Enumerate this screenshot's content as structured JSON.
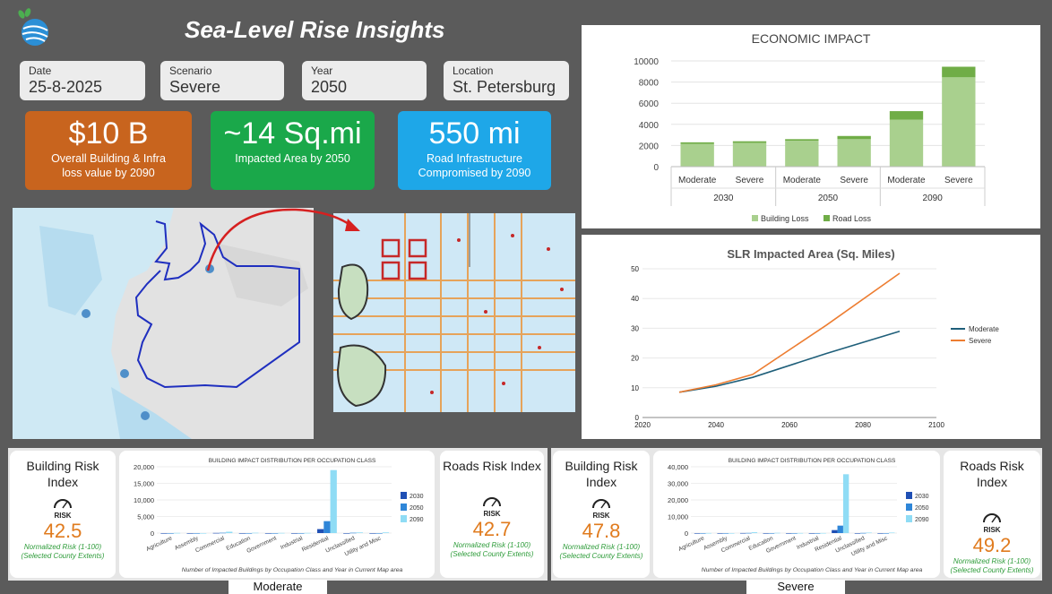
{
  "header": {
    "title": "Sea-Level Rise Insights",
    "logo": "globe-logo"
  },
  "filters": [
    {
      "label": "Date",
      "value": "25-8-2025"
    },
    {
      "label": "Scenario",
      "value": "Severe"
    },
    {
      "label": "Year",
      "value": "2050"
    },
    {
      "label": "Location",
      "value": "St. Petersburg"
    }
  ],
  "kpis": [
    {
      "value": "$10 B",
      "line1": "Overall Building & Infra",
      "line2": "loss value by 2090",
      "color": "#c8641e"
    },
    {
      "value": "~14 Sq.mi",
      "line1": "Impacted Area by 2050",
      "line2": "",
      "color": "#1aa84a"
    },
    {
      "value": "550 mi",
      "line1": "Road Infrastructure",
      "line2": "Compromised by 2090",
      "color": "#1ea7e8"
    }
  ],
  "chart_data": [
    {
      "type": "bar",
      "title": "ECONOMIC IMPACT",
      "categories": [
        "Moderate",
        "Severe",
        "Moderate",
        "Severe",
        "Moderate",
        "Severe"
      ],
      "groups": [
        "2030",
        "2050",
        "2090"
      ],
      "series": [
        {
          "name": "Building Loss",
          "values": [
            2150,
            2250,
            2450,
            2600,
            4450,
            8450
          ],
          "color": "#a9d08e"
        },
        {
          "name": "Road Loss",
          "values": [
            150,
            150,
            150,
            300,
            800,
            1000
          ],
          "color": "#70ad47"
        }
      ],
      "ylim": [
        0,
        10000
      ],
      "yticks": [
        0,
        2000,
        4000,
        6000,
        8000,
        10000
      ],
      "stacked": true,
      "legend": "bottom"
    },
    {
      "type": "line",
      "title": "SLR Impacted Area (Sq. Miles)",
      "x": [
        2030,
        2040,
        2050,
        2070,
        2090
      ],
      "series": [
        {
          "name": "Moderate",
          "values": [
            8.5,
            10.5,
            13.5,
            21.5,
            29
          ],
          "color": "#1f5f7a"
        },
        {
          "name": "Severe",
          "values": [
            8.5,
            11,
            14.5,
            31,
            48.5
          ],
          "color": "#ed7d31"
        }
      ],
      "xlim": [
        2020,
        2100
      ],
      "ylim": [
        0,
        50
      ],
      "xticks": [
        2020,
        2040,
        2060,
        2080,
        2100
      ],
      "yticks": [
        0,
        10,
        20,
        30,
        40,
        50
      ],
      "legend": "right"
    },
    {
      "type": "bar",
      "title": "BUILDING IMPACT DISTRIBUTION PER OCCUPATION CLASS",
      "xlabel": "Number of Impacted Buildings by Occupation Class and Year in Current Map area",
      "categories": [
        "Agriculture",
        "Assembly",
        "Commercial",
        "Education",
        "Government",
        "Industrial",
        "Residential",
        "Unclassified",
        "Utility and Misc"
      ],
      "series": [
        {
          "name": "2030",
          "values": [
            0,
            0,
            50,
            0,
            0,
            0,
            1200,
            0,
            0
          ],
          "color": "#1f4fb4"
        },
        {
          "name": "2050",
          "values": [
            0,
            0,
            100,
            0,
            0,
            0,
            3600,
            100,
            0
          ],
          "color": "#2f86d8"
        },
        {
          "name": "2090",
          "values": [
            50,
            0,
            400,
            100,
            50,
            50,
            19000,
            200,
            200
          ],
          "color": "#8fdcf5"
        }
      ],
      "ylim": [
        0,
        20000
      ],
      "yticks": [
        "0",
        "5,000",
        "10,000",
        "15,000",
        "20,000"
      ],
      "legend": "right"
    },
    {
      "type": "bar",
      "title": "BUILDING IMPACT DISTRIBUTION PER OCCUPATION CLASS",
      "xlabel": "Number of Impacted Buildings by Occupation Class and Year in Current Map area",
      "categories": [
        "Agriculture",
        "Assembly",
        "Commercial",
        "Education",
        "Government",
        "Industrial",
        "Residential",
        "Unclassified",
        "Utility and Misc"
      ],
      "series": [
        {
          "name": "2030",
          "values": [
            0,
            0,
            50,
            0,
            0,
            0,
            1800,
            0,
            0
          ],
          "color": "#1f4fb4"
        },
        {
          "name": "2050",
          "values": [
            0,
            0,
            100,
            0,
            0,
            0,
            4500,
            100,
            0
          ],
          "color": "#2f86d8"
        },
        {
          "name": "2090",
          "values": [
            50,
            0,
            500,
            150,
            50,
            50,
            35500,
            300,
            300
          ],
          "color": "#8fdcf5"
        }
      ],
      "ylim": [
        0,
        40000
      ],
      "yticks": [
        "0",
        "10,000",
        "20,000",
        "30,000",
        "40,000"
      ],
      "legend": "right"
    }
  ],
  "risk": {
    "moderate": {
      "building": {
        "title1": "Building Risk",
        "title2": "Index",
        "value": "42.5"
      },
      "roads": {
        "title1": "Roads Risk Index",
        "title2": "",
        "value": "42.7"
      },
      "caption": "Moderate"
    },
    "severe": {
      "building": {
        "title1": "Building Risk",
        "title2": "Index",
        "value": "47.8"
      },
      "roads": {
        "title1": "Roads Risk Index",
        "title2": "",
        "value": "49.2"
      },
      "caption": "Severe"
    },
    "note1": "Normalized Risk (1-100)",
    "note2": "(Selected County Extents)",
    "icon_label": "RISK"
  }
}
